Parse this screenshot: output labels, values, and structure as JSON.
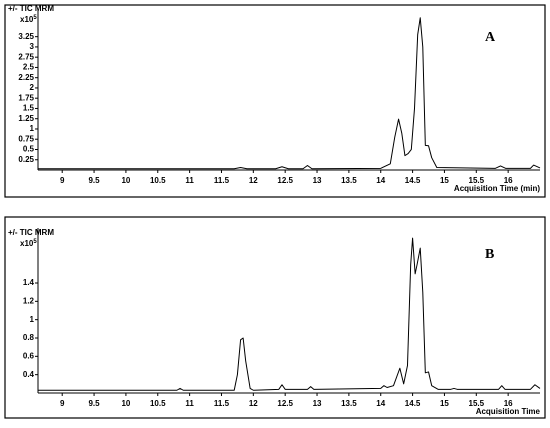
{
  "chart_data": [
    {
      "type": "line",
      "header": "+/- TIC MRM",
      "scale_label": "x10",
      "scale_exp": "5",
      "annotation": "A",
      "x_label": "Acquisition Time (min)",
      "xlim": [
        8.62,
        16.5
      ],
      "xticks": [
        9,
        9.5,
        10,
        10.5,
        11,
        11.5,
        12,
        12.5,
        13,
        13.5,
        14,
        14.5,
        15,
        15.5,
        16
      ],
      "ylim": [
        0,
        3.9
      ],
      "yticks": [
        0.25,
        0.5,
        0.75,
        1,
        1.25,
        1.5,
        1.75,
        2,
        2.25,
        2.5,
        2.75,
        3,
        3.25
      ],
      "color": "#000000",
      "x": [
        8.62,
        11.7,
        11.8,
        11.9,
        12.35,
        12.45,
        12.55,
        12.78,
        12.85,
        12.92,
        14.0,
        14.15,
        14.22,
        14.28,
        14.33,
        14.38,
        14.43,
        14.48,
        14.53,
        14.58,
        14.62,
        14.66,
        14.7,
        14.75,
        14.8,
        14.88,
        15.8,
        15.88,
        15.96,
        16.35,
        16.4,
        16.5
      ],
      "values": [
        0.03,
        0.03,
        0.06,
        0.03,
        0.03,
        0.08,
        0.03,
        0.03,
        0.11,
        0.03,
        0.04,
        0.15,
        0.8,
        1.24,
        0.9,
        0.35,
        0.4,
        0.5,
        1.5,
        3.3,
        3.71,
        3.0,
        0.6,
        0.59,
        0.3,
        0.06,
        0.04,
        0.1,
        0.04,
        0.04,
        0.12,
        0.05
      ]
    },
    {
      "type": "line",
      "header": "+/- TIC MRM",
      "scale_label": "x10",
      "scale_exp": "5",
      "annotation": "B",
      "x_label": "Acquisition Time",
      "xlim": [
        8.62,
        16.5
      ],
      "xticks": [
        9,
        9.5,
        10,
        10.5,
        11,
        11.5,
        12,
        12.5,
        13,
        13.5,
        14,
        14.5,
        15,
        15.5,
        16
      ],
      "ylim": [
        0.2,
        2.0
      ],
      "yticks": [
        0.4,
        0.6,
        0.8,
        1,
        1.2,
        1.4
      ],
      "color": "#000000",
      "x": [
        8.62,
        10.8,
        10.85,
        10.9,
        11.7,
        11.75,
        11.8,
        11.84,
        11.88,
        11.95,
        12.0,
        12.4,
        12.45,
        12.5,
        12.85,
        12.9,
        12.95,
        14.0,
        14.05,
        14.1,
        14.2,
        14.3,
        14.36,
        14.42,
        14.47,
        14.5,
        14.54,
        14.57,
        14.62,
        14.66,
        14.7,
        14.75,
        14.8,
        14.9,
        15.1,
        15.15,
        15.2,
        15.85,
        15.9,
        15.95,
        16.35,
        16.42,
        16.5
      ],
      "values": [
        0.23,
        0.23,
        0.25,
        0.23,
        0.23,
        0.4,
        0.78,
        0.8,
        0.55,
        0.25,
        0.23,
        0.24,
        0.29,
        0.24,
        0.24,
        0.27,
        0.24,
        0.25,
        0.28,
        0.26,
        0.28,
        0.47,
        0.3,
        0.5,
        1.6,
        1.89,
        1.5,
        1.6,
        1.78,
        1.3,
        0.42,
        0.43,
        0.28,
        0.24,
        0.24,
        0.25,
        0.24,
        0.24,
        0.28,
        0.24,
        0.24,
        0.29,
        0.25
      ]
    }
  ]
}
